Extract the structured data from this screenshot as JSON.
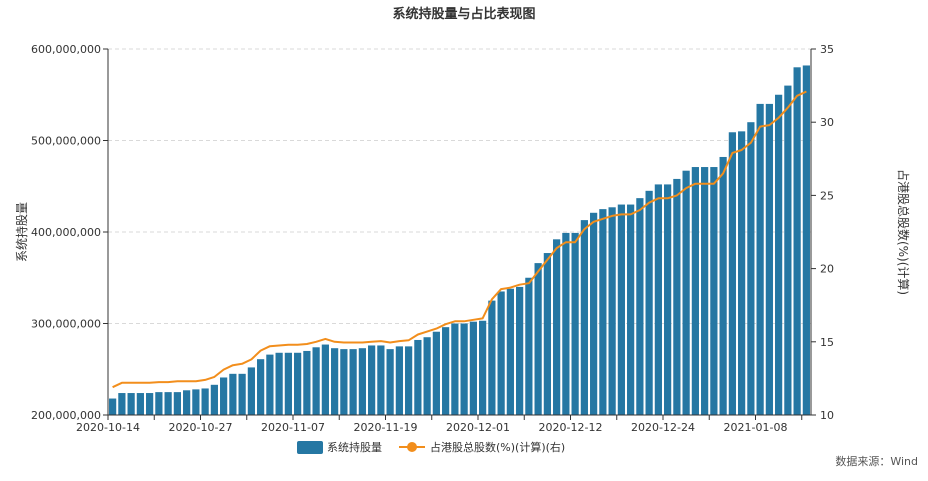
{
  "chart_data": {
    "type": "bar",
    "title": "系统持股量与占比表现图",
    "ylabel_left": "系统持股量",
    "ylabel_right": "占港股总股数(%)(计算)",
    "source": "数据来源：Wind",
    "x_tick_labels": [
      "2020-10-14",
      "2020-10-27",
      "2020-11-07",
      "2020-11-19",
      "2020-12-01",
      "2020-12-12",
      "2020-12-24",
      "2021-01-08"
    ],
    "x_tick_indices": [
      0,
      10,
      20,
      30,
      40,
      50,
      60,
      70
    ],
    "y_left": {
      "min": 200000000,
      "max": 600000000,
      "ticks": [
        200000000,
        300000000,
        400000000,
        500000000,
        600000000
      ],
      "tick_labels": [
        "200,000,000",
        "300,000,000",
        "400,000,000",
        "500,000,000",
        "600,000,000"
      ]
    },
    "y_right": {
      "min": 10,
      "max": 35,
      "ticks": [
        10,
        15,
        20,
        25,
        30,
        35
      ],
      "tick_labels": [
        "10",
        "15",
        "20",
        "25",
        "30",
        "35"
      ]
    },
    "grid": true,
    "legend_position": "bottom",
    "colors": {
      "bar": "#2577a3",
      "line": "#f28e1c",
      "grid": "#d9d9d9",
      "axis": "#333333"
    },
    "series": [
      {
        "name": "系统持股量",
        "type": "bar",
        "axis": "left",
        "values": [
          218000000,
          224000000,
          224000000,
          224000000,
          224000000,
          225000000,
          225000000,
          225000000,
          227000000,
          228000000,
          229000000,
          233000000,
          241000000,
          245000000,
          245000000,
          252000000,
          261000000,
          266000000,
          268000000,
          268000000,
          268000000,
          270000000,
          274000000,
          277000000,
          273000000,
          272000000,
          272000000,
          273000000,
          276000000,
          276000000,
          272000000,
          275000000,
          275000000,
          282000000,
          285000000,
          291000000,
          296000000,
          300000000,
          300000000,
          302000000,
          303000000,
          325000000,
          335000000,
          338000000,
          340000000,
          350000000,
          366000000,
          377000000,
          392000000,
          399000000,
          399000000,
          413000000,
          421000000,
          425000000,
          427000000,
          430000000,
          430000000,
          437000000,
          445000000,
          452000000,
          452000000,
          458000000,
          467000000,
          471000000,
          471000000,
          471000000,
          482000000,
          509000000,
          510000000,
          520000000,
          540000000,
          540000000,
          550000000,
          560000000,
          580000000,
          582000000
        ]
      },
      {
        "name": "占港股总股数(%)(计算)(右)",
        "type": "line",
        "axis": "right",
        "values": [
          11.9,
          12.2,
          12.2,
          12.2,
          12.2,
          12.25,
          12.25,
          12.3,
          12.3,
          12.3,
          12.4,
          12.6,
          13.1,
          13.4,
          13.5,
          13.8,
          14.4,
          14.7,
          14.75,
          14.8,
          14.8,
          14.85,
          15.0,
          15.2,
          15.0,
          14.95,
          14.95,
          14.95,
          15.0,
          15.05,
          14.95,
          15.05,
          15.1,
          15.5,
          15.7,
          15.9,
          16.2,
          16.4,
          16.4,
          16.5,
          16.6,
          17.9,
          18.6,
          18.7,
          18.9,
          19.0,
          19.8,
          20.6,
          21.4,
          21.8,
          21.8,
          22.7,
          23.2,
          23.4,
          23.6,
          23.7,
          23.7,
          24.0,
          24.5,
          24.8,
          24.8,
          25.0,
          25.5,
          25.8,
          25.8,
          25.8,
          26.5,
          27.9,
          28.1,
          28.6,
          29.7,
          29.8,
          30.3,
          31.0,
          31.8,
          32.1
        ]
      }
    ]
  }
}
